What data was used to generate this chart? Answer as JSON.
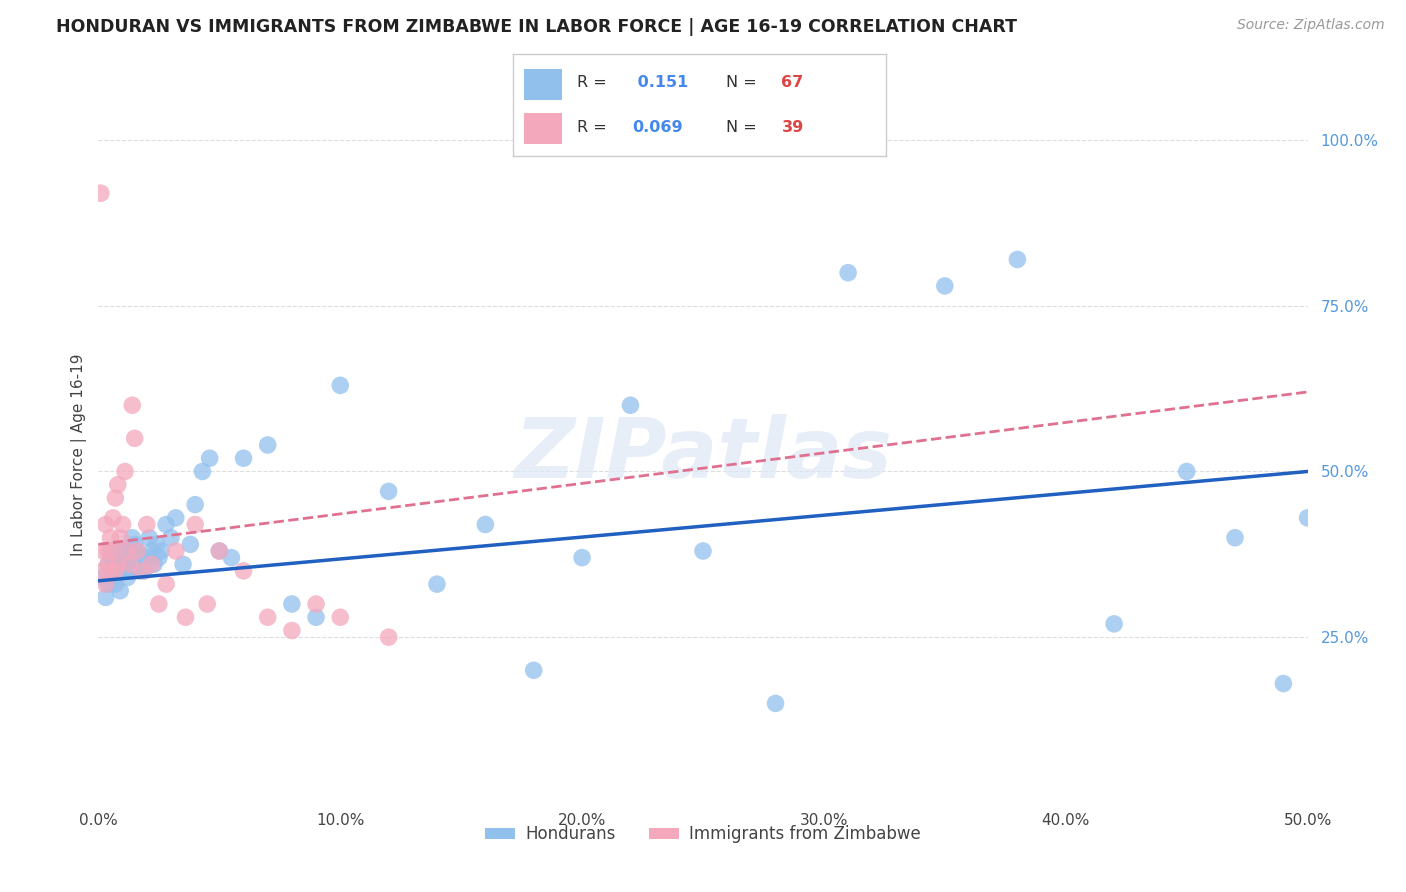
{
  "title": "HONDURAN VS IMMIGRANTS FROM ZIMBABWE IN LABOR FORCE | AGE 16-19 CORRELATION CHART",
  "source": "Source: ZipAtlas.com",
  "ylabel": "In Labor Force | Age 16-19",
  "xlim": [
    0.0,
    0.5
  ],
  "ylim": [
    0.0,
    1.05
  ],
  "xtick_labels": [
    "0.0%",
    "10.0%",
    "20.0%",
    "30.0%",
    "40.0%",
    "50.0%"
  ],
  "xtick_vals": [
    0.0,
    0.1,
    0.2,
    0.3,
    0.4,
    0.5
  ],
  "right_ytick_labels": [
    "25.0%",
    "50.0%",
    "75.0%",
    "100.0%"
  ],
  "right_ytick_vals": [
    0.25,
    0.5,
    0.75,
    1.0
  ],
  "legend_blue_r": "0.151",
  "legend_blue_n": "67",
  "legend_pink_r": "0.069",
  "legend_pink_n": "39",
  "blue_color": "#92c0ed",
  "pink_color": "#f4a8bc",
  "blue_line_color": "#2060c0",
  "pink_line_color": "#e07090",
  "watermark": "ZIPatlas",
  "blue_line_x": [
    0.0,
    0.5
  ],
  "blue_line_y": [
    0.335,
    0.5
  ],
  "pink_line_x": [
    0.0,
    0.5
  ],
  "pink_line_y": [
    0.39,
    0.62
  ],
  "background_color": "#ffffff",
  "grid_color": "#dddddd",
  "blue_scatter_x": [
    0.002,
    0.003,
    0.004,
    0.004,
    0.005,
    0.005,
    0.006,
    0.006,
    0.007,
    0.007,
    0.008,
    0.008,
    0.009,
    0.009,
    0.01,
    0.01,
    0.011,
    0.011,
    0.012,
    0.012,
    0.013,
    0.013,
    0.014,
    0.015,
    0.015,
    0.016,
    0.017,
    0.018,
    0.019,
    0.02,
    0.021,
    0.022,
    0.023,
    0.024,
    0.025,
    0.026,
    0.028,
    0.03,
    0.032,
    0.035,
    0.038,
    0.04,
    0.043,
    0.046,
    0.05,
    0.055,
    0.06,
    0.07,
    0.08,
    0.09,
    0.1,
    0.12,
    0.14,
    0.16,
    0.18,
    0.2,
    0.22,
    0.25,
    0.28,
    0.31,
    0.35,
    0.38,
    0.42,
    0.45,
    0.47,
    0.49,
    0.5
  ],
  "blue_scatter_y": [
    0.34,
    0.31,
    0.36,
    0.33,
    0.35,
    0.38,
    0.34,
    0.37,
    0.36,
    0.33,
    0.38,
    0.35,
    0.32,
    0.36,
    0.35,
    0.37,
    0.36,
    0.38,
    0.34,
    0.36,
    0.38,
    0.35,
    0.4,
    0.36,
    0.39,
    0.38,
    0.35,
    0.37,
    0.35,
    0.37,
    0.4,
    0.38,
    0.36,
    0.39,
    0.37,
    0.38,
    0.42,
    0.4,
    0.43,
    0.36,
    0.39,
    0.45,
    0.5,
    0.52,
    0.38,
    0.37,
    0.52,
    0.54,
    0.3,
    0.28,
    0.63,
    0.47,
    0.33,
    0.42,
    0.2,
    0.37,
    0.6,
    0.38,
    0.15,
    0.8,
    0.78,
    0.82,
    0.27,
    0.5,
    0.4,
    0.18,
    0.43
  ],
  "pink_scatter_x": [
    0.001,
    0.002,
    0.002,
    0.003,
    0.003,
    0.004,
    0.004,
    0.005,
    0.005,
    0.006,
    0.006,
    0.007,
    0.007,
    0.008,
    0.008,
    0.009,
    0.01,
    0.011,
    0.012,
    0.013,
    0.014,
    0.015,
    0.016,
    0.018,
    0.02,
    0.022,
    0.025,
    0.028,
    0.032,
    0.036,
    0.04,
    0.045,
    0.05,
    0.06,
    0.07,
    0.08,
    0.09,
    0.1,
    0.12
  ],
  "pink_scatter_y": [
    0.92,
    0.38,
    0.35,
    0.42,
    0.33,
    0.38,
    0.36,
    0.4,
    0.35,
    0.43,
    0.38,
    0.46,
    0.35,
    0.48,
    0.36,
    0.4,
    0.42,
    0.5,
    0.38,
    0.36,
    0.6,
    0.55,
    0.38,
    0.35,
    0.42,
    0.36,
    0.3,
    0.33,
    0.38,
    0.28,
    0.42,
    0.3,
    0.38,
    0.35,
    0.28,
    0.26,
    0.3,
    0.28,
    0.25
  ]
}
